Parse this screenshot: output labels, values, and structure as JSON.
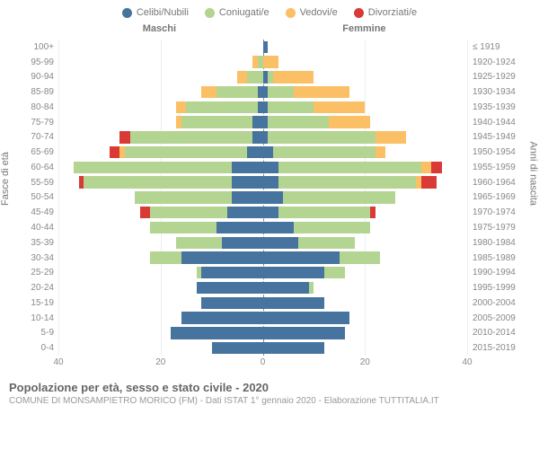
{
  "legend": [
    {
      "label": "Celibi/Nubili",
      "color": "#46749f"
    },
    {
      "label": "Coniugati/e",
      "color": "#b4d491"
    },
    {
      "label": "Vedovi/e",
      "color": "#fbc065"
    },
    {
      "label": "Divorziati/e",
      "color": "#d93a36"
    }
  ],
  "headers": {
    "left": "Maschi",
    "right": "Femmine"
  },
  "y_left_title": "Fasce di età",
  "y_right_title": "Anni di nascita",
  "title": "Popolazione per età, sesso e stato civile - 2020",
  "subtitle": "COMUNE DI MONSAMPIETRO MORICO (FM) - Dati ISTAT 1° gennaio 2020 - Elaborazione TUTTITALIA.IT",
  "x_ticks": [
    40,
    20,
    0,
    20,
    40
  ],
  "x_max": 40,
  "colors": {
    "celibi": "#46749f",
    "coniugati": "#b4d491",
    "vedovi": "#fbc065",
    "divorziati": "#d93a36",
    "grid": "#eeeeee",
    "center": "#888888",
    "text": "#888888",
    "bg": "#ffffff"
  },
  "fontsize": {
    "legend": 11,
    "header": 11,
    "axis": 10,
    "title": 13,
    "subtitle": 10
  },
  "rows": [
    {
      "age": "0-4",
      "birth": "2015-2019",
      "m": {
        "c": 10,
        "co": 0,
        "v": 0,
        "d": 0
      },
      "f": {
        "c": 12,
        "co": 0,
        "v": 0,
        "d": 0
      }
    },
    {
      "age": "5-9",
      "birth": "2010-2014",
      "m": {
        "c": 18,
        "co": 0,
        "v": 0,
        "d": 0
      },
      "f": {
        "c": 16,
        "co": 0,
        "v": 0,
        "d": 0
      }
    },
    {
      "age": "10-14",
      "birth": "2005-2009",
      "m": {
        "c": 16,
        "co": 0,
        "v": 0,
        "d": 0
      },
      "f": {
        "c": 17,
        "co": 0,
        "v": 0,
        "d": 0
      }
    },
    {
      "age": "15-19",
      "birth": "2000-2004",
      "m": {
        "c": 12,
        "co": 0,
        "v": 0,
        "d": 0
      },
      "f": {
        "c": 12,
        "co": 0,
        "v": 0,
        "d": 0
      }
    },
    {
      "age": "20-24",
      "birth": "1995-1999",
      "m": {
        "c": 13,
        "co": 0,
        "v": 0,
        "d": 0
      },
      "f": {
        "c": 9,
        "co": 1,
        "v": 0,
        "d": 0
      }
    },
    {
      "age": "25-29",
      "birth": "1990-1994",
      "m": {
        "c": 12,
        "co": 1,
        "v": 0,
        "d": 0
      },
      "f": {
        "c": 12,
        "co": 4,
        "v": 0,
        "d": 0
      }
    },
    {
      "age": "30-34",
      "birth": "1985-1989",
      "m": {
        "c": 16,
        "co": 6,
        "v": 0,
        "d": 0
      },
      "f": {
        "c": 15,
        "co": 8,
        "v": 0,
        "d": 0
      }
    },
    {
      "age": "35-39",
      "birth": "1980-1984",
      "m": {
        "c": 8,
        "co": 9,
        "v": 0,
        "d": 0
      },
      "f": {
        "c": 7,
        "co": 11,
        "v": 0,
        "d": 0
      }
    },
    {
      "age": "40-44",
      "birth": "1975-1979",
      "m": {
        "c": 9,
        "co": 13,
        "v": 0,
        "d": 0
      },
      "f": {
        "c": 6,
        "co": 15,
        "v": 0,
        "d": 0
      }
    },
    {
      "age": "45-49",
      "birth": "1970-1974",
      "m": {
        "c": 7,
        "co": 15,
        "v": 0,
        "d": 2
      },
      "f": {
        "c": 3,
        "co": 18,
        "v": 0,
        "d": 1
      }
    },
    {
      "age": "50-54",
      "birth": "1965-1969",
      "m": {
        "c": 6,
        "co": 19,
        "v": 0,
        "d": 0
      },
      "f": {
        "c": 4,
        "co": 22,
        "v": 0,
        "d": 0
      }
    },
    {
      "age": "55-59",
      "birth": "1960-1964",
      "m": {
        "c": 6,
        "co": 29,
        "v": 0,
        "d": 1
      },
      "f": {
        "c": 3,
        "co": 27,
        "v": 1,
        "d": 3
      }
    },
    {
      "age": "60-64",
      "birth": "1955-1959",
      "m": {
        "c": 6,
        "co": 31,
        "v": 0,
        "d": 0
      },
      "f": {
        "c": 3,
        "co": 28,
        "v": 2,
        "d": 2
      }
    },
    {
      "age": "65-69",
      "birth": "1950-1954",
      "m": {
        "c": 3,
        "co": 24,
        "v": 1,
        "d": 2
      },
      "f": {
        "c": 2,
        "co": 20,
        "v": 2,
        "d": 0
      }
    },
    {
      "age": "70-74",
      "birth": "1945-1949",
      "m": {
        "c": 2,
        "co": 24,
        "v": 0,
        "d": 2
      },
      "f": {
        "c": 1,
        "co": 21,
        "v": 6,
        "d": 0
      }
    },
    {
      "age": "75-79",
      "birth": "1940-1944",
      "m": {
        "c": 2,
        "co": 14,
        "v": 1,
        "d": 0
      },
      "f": {
        "c": 1,
        "co": 12,
        "v": 8,
        "d": 0
      }
    },
    {
      "age": "80-84",
      "birth": "1935-1939",
      "m": {
        "c": 1,
        "co": 14,
        "v": 2,
        "d": 0
      },
      "f": {
        "c": 1,
        "co": 9,
        "v": 10,
        "d": 0
      }
    },
    {
      "age": "85-89",
      "birth": "1930-1934",
      "m": {
        "c": 1,
        "co": 8,
        "v": 3,
        "d": 0
      },
      "f": {
        "c": 1,
        "co": 5,
        "v": 11,
        "d": 0
      }
    },
    {
      "age": "90-94",
      "birth": "1925-1929",
      "m": {
        "c": 0,
        "co": 3,
        "v": 2,
        "d": 0
      },
      "f": {
        "c": 1,
        "co": 1,
        "v": 8,
        "d": 0
      }
    },
    {
      "age": "95-99",
      "birth": "1920-1924",
      "m": {
        "c": 0,
        "co": 1,
        "v": 1,
        "d": 0
      },
      "f": {
        "c": 0,
        "co": 0,
        "v": 3,
        "d": 0
      }
    },
    {
      "age": "100+",
      "birth": "≤ 1919",
      "m": {
        "c": 0,
        "co": 0,
        "v": 0,
        "d": 0
      },
      "f": {
        "c": 1,
        "co": 0,
        "v": 0,
        "d": 0
      }
    }
  ]
}
